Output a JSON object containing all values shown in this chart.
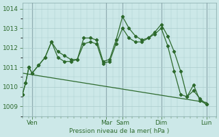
{
  "background_color": "#cce8e8",
  "grid_color": "#aacccc",
  "line_color": "#2d6a2d",
  "xlabel": "Pression niveau de la mer( hPa )",
  "ylim": [
    1008.5,
    1014.3
  ],
  "yticks": [
    1009,
    1010,
    1011,
    1012,
    1013,
    1014
  ],
  "xlim": [
    0,
    30
  ],
  "day_labels": [
    "Ven",
    "Mar",
    "Sam",
    "Dim",
    "Lun"
  ],
  "day_positions": [
    1.5,
    13.0,
    15.5,
    21.5,
    28.5
  ],
  "vline_positions": [
    1.5,
    13.0,
    15.5,
    21.5,
    28.5
  ],
  "num_minor_x": 30,
  "line1_x": [
    0,
    0.5,
    1.0,
    1.5,
    2.5,
    3.5,
    4.5,
    5.5,
    6.5,
    7.5,
    8.5,
    9.5,
    10.5,
    11.5,
    12.5,
    13.5,
    14.5,
    15.5,
    16.5,
    17.5,
    18.5,
    19.5,
    20.5,
    21.5,
    22.5,
    23.5,
    24.5,
    25.5,
    26.5,
    27.5,
    28.5
  ],
  "line1_y": [
    1009.6,
    1010.2,
    1011.0,
    1010.7,
    1011.1,
    1011.5,
    1012.3,
    1011.8,
    1011.6,
    1011.4,
    1011.4,
    1012.5,
    1012.5,
    1012.4,
    1011.3,
    1011.4,
    1012.4,
    1013.6,
    1013.0,
    1012.6,
    1012.4,
    1012.5,
    1012.7,
    1013.0,
    1012.1,
    1010.8,
    1009.6,
    1009.5,
    1010.1,
    1009.3,
    1009.1
  ],
  "line2_x": [
    0,
    0.5,
    1.0,
    1.5,
    2.5,
    3.5,
    4.5,
    5.5,
    6.5,
    7.5,
    8.5,
    9.5,
    10.5,
    11.5,
    12.5,
    13.5,
    14.5,
    15.5,
    16.5,
    17.5,
    18.5,
    19.5,
    20.5,
    21.5,
    22.5,
    23.5,
    24.5,
    25.5,
    26.5,
    27.5,
    28.5
  ],
  "line2_y": [
    1009.6,
    1010.2,
    1011.0,
    1010.7,
    1011.1,
    1011.5,
    1012.3,
    1011.5,
    1011.3,
    1011.3,
    1011.4,
    1012.2,
    1012.3,
    1012.2,
    1011.2,
    1011.3,
    1012.2,
    1013.0,
    1012.5,
    1012.3,
    1012.3,
    1012.5,
    1012.8,
    1013.2,
    1012.6,
    1011.8,
    1010.8,
    1009.5,
    1009.8,
    1009.4,
    1009.1
  ],
  "line3_x": [
    0,
    28.5
  ],
  "line3_y": [
    1010.7,
    1009.2
  ]
}
